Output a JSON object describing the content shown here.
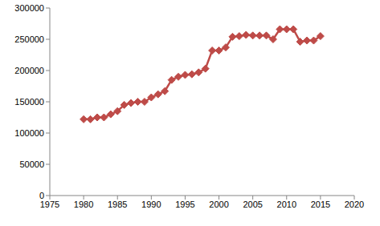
{
  "chart_data": {
    "type": "line",
    "x": [
      1980,
      1981,
      1982,
      1983,
      1984,
      1985,
      1986,
      1987,
      1988,
      1989,
      1990,
      1991,
      1992,
      1993,
      1994,
      1995,
      1996,
      1997,
      1998,
      1999,
      2000,
      2001,
      2002,
      2003,
      2004,
      2005,
      2006,
      2007,
      2008,
      2009,
      2010,
      2011,
      2012,
      2013,
      2014,
      2015
    ],
    "values": [
      122000,
      122000,
      125000,
      125000,
      130000,
      135000,
      145000,
      148000,
      150000,
      150000,
      157000,
      162000,
      167000,
      185000,
      190000,
      193000,
      194000,
      197000,
      203000,
      232000,
      232000,
      237000,
      254000,
      255000,
      257000,
      256000,
      256000,
      256000,
      250000,
      266000,
      266000,
      266000,
      246000,
      248000,
      248000,
      255000
    ],
    "color": "#be4b48",
    "marker": "diamond",
    "xlim": [
      1975,
      2020
    ],
    "xticks": [
      1975,
      1980,
      1985,
      1990,
      1995,
      2000,
      2005,
      2010,
      2015,
      2020
    ],
    "ylim": [
      0,
      300000
    ],
    "yticks": [
      0,
      50000,
      100000,
      150000,
      200000,
      250000,
      300000
    ],
    "grid": false
  }
}
